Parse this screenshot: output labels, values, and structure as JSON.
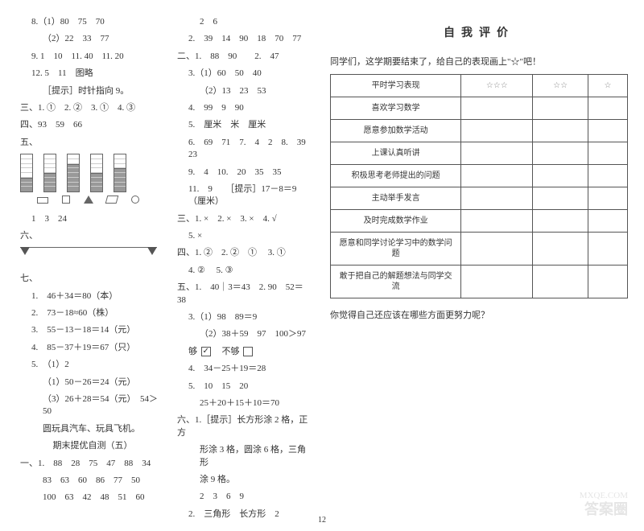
{
  "col_left": {
    "l1": "8.（1）80　75　70",
    "l2": "（2）22　33　77",
    "l3": "9. 1　10　11. 40　11. 20",
    "l4": "12. 5　11　图略",
    "l5": "［提示］时针指向 9。",
    "l6": "三、1. ①　2. ②　3. ①　4. ③",
    "l7": "四、93　59　66",
    "section5": "五、",
    "bars": {
      "heights_pct": [
        37,
        50,
        75,
        50,
        63
      ],
      "gridlines": 8,
      "fill_color": "#999999",
      "border_color": "#666666"
    },
    "shapes_line": "",
    "l8": "1　3　24",
    "section6": "六、",
    "triangle_positions": [
      0,
      96
    ],
    "section7": "七、",
    "l9": "1.　46＋34＝80（本）",
    "l10": "2.　73－18≈60（株）",
    "l11": "3.　55－13－18＝14（元）",
    "l12": "4.　85－37＋19＝67（只）",
    "l13": "5.　（1）2",
    "l14": "（1）50－26＝24（元）",
    "l15": "（3）26＋28＝54（元）　54＞50",
    "l16": "圆玩具汽车、玩具飞机。",
    "test_title": "期末提优自测（五）",
    "l17": "一、1.　88　28　75　47　88　34",
    "l18": "83　63　60　86　77　50",
    "l19": "100　63　42　48　51　60"
  },
  "col_mid": {
    "m1": "2　6",
    "m2": "2.　39　14　90　18　70　77",
    "m3": "二、1.　88　90　　2.　47",
    "m4": "3.（1）60　50　40",
    "m5": "（2）13　23　53",
    "m6": "4.　99　9　90",
    "m7": "5.　厘米　米　厘米",
    "m8": "6.　69　71　7.　4　2　8.　39　23",
    "m9": "9.　4　10.　20　35　35",
    "m10": "11.　9　　［提示］17－8＝9（厘米）",
    "m11": "三、1. ×　2. ×　3. ×　4. √",
    "m12": "5. ×",
    "m13": "四、1. ②　2. ②　① 　3. ①",
    "m14": "4. ② 　5. ③",
    "m15": "五、1.　40｜3＝43　2. 90　52＝38",
    "m16": "3.（1）98　89＝9",
    "m17": "（2）38＋59　97　100＞97",
    "m18_a": "够",
    "m18_b": "不够",
    "m19": "4.　34－25＋19＝28",
    "m20": "5.　10　15　20",
    "m21": "25＋20＋15＋10＝70",
    "m22": "六、1.［提示］长方形涂 2 格，正方",
    "m23": "形涂 3 格，圆涂 6 格，三角形",
    "m24": "涂 9 格。",
    "m25": "2　3　6　9",
    "m26": "2.　三角形　长方形　2"
  },
  "col_right": {
    "title": "自我评价",
    "intro": "同学们，这学期要结束了，给自己的表现画上\"☆\"吧！",
    "star_header": [
      "☆☆☆",
      "☆☆",
      "☆"
    ],
    "rows": [
      "平时学习表现",
      "喜欢学习数学",
      "愿意参加数学活动",
      "上课认真听讲",
      "积极思考老师提出的问题",
      "主动举手发言",
      "及时完成数学作业",
      "愿意和同学讨论学习中的数学问题",
      "敢于把自己的解题想法与同学交流"
    ],
    "bottom": "你觉得自己还应该在哪些方面更努力呢？"
  },
  "page_num": "12",
  "watermark": "答案圈",
  "watermark2": "MXQE.COM"
}
